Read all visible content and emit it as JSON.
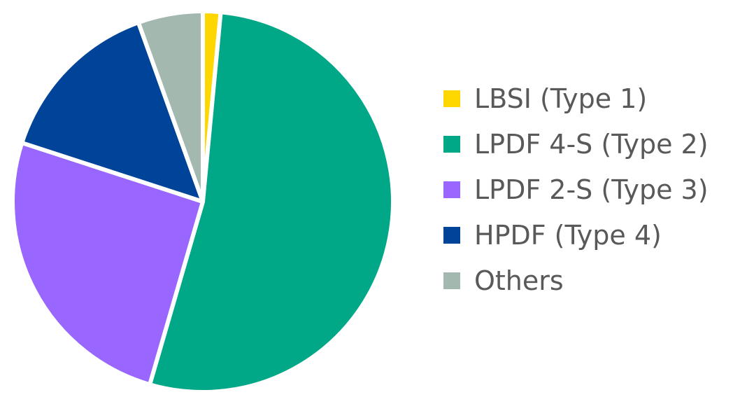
{
  "chart_data": {
    "type": "pie",
    "title": "",
    "start_angle_deg": 0,
    "direction": "clockwise",
    "legend_position": "right",
    "series": [
      {
        "name": "",
        "slices": [
          {
            "label": "LBSI (Type 1)",
            "value": 1.5,
            "color": "#FFD700"
          },
          {
            "label": "LPDF 4-S (Type 2)",
            "value": 53.0,
            "color": "#00A887"
          },
          {
            "label": "LPDF 2-S (Type 3)",
            "value": 25.5,
            "color": "#9966FF"
          },
          {
            "label": "HPDF (Type 4)",
            "value": 14.5,
            "color": "#004499"
          },
          {
            "label": "Others",
            "value": 5.5,
            "color": "#A3B8AF"
          }
        ]
      }
    ]
  }
}
